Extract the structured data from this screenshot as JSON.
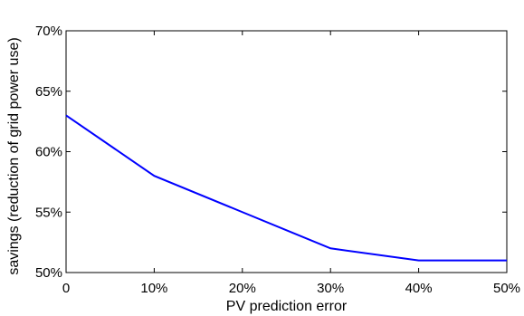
{
  "chart_data": {
    "type": "line",
    "title": "",
    "xlabel": "PV prediction error",
    "ylabel": "savings (reduction of grid power use)",
    "x": [
      0,
      10,
      20,
      30,
      40,
      50
    ],
    "xlim": [
      0,
      50
    ],
    "ylim": [
      50,
      70
    ],
    "x_ticks": [
      0,
      10,
      20,
      30,
      40,
      50
    ],
    "x_tick_labels": [
      "0",
      "10%",
      "20%",
      "30%",
      "40%",
      "50%"
    ],
    "y_ticks": [
      50,
      55,
      60,
      65,
      70
    ],
    "y_tick_labels": [
      "50%",
      "55%",
      "60%",
      "65%",
      "70%"
    ],
    "grid": false,
    "series": [
      {
        "values": [
          63,
          58,
          55,
          52,
          51,
          51
        ],
        "color": "#0000ff"
      }
    ]
  }
}
